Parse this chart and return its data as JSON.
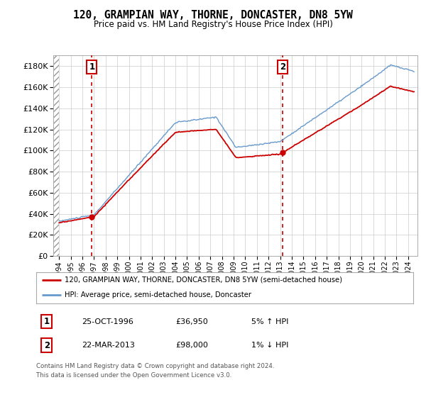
{
  "title": "120, GRAMPIAN WAY, THORNE, DONCASTER, DN8 5YW",
  "subtitle": "Price paid vs. HM Land Registry's House Price Index (HPI)",
  "legend_line1": "120, GRAMPIAN WAY, THORNE, DONCASTER, DN8 5YW (semi-detached house)",
  "legend_line2": "HPI: Average price, semi-detached house, Doncaster",
  "annotation1_label": "1",
  "annotation1_date": "25-OCT-1996",
  "annotation1_price": "£36,950",
  "annotation1_hpi": "5% ↑ HPI",
  "annotation2_label": "2",
  "annotation2_date": "22-MAR-2013",
  "annotation2_price": "£98,000",
  "annotation2_hpi": "1% ↓ HPI",
  "footer": "Contains HM Land Registry data © Crown copyright and database right 2024.\nThis data is licensed under the Open Government Licence v3.0.",
  "red_color": "#cc0000",
  "blue_color": "#6699cc",
  "grid_color": "#cccccc",
  "ylim": [
    0,
    190000
  ],
  "yticks": [
    0,
    20000,
    40000,
    60000,
    80000,
    100000,
    120000,
    140000,
    160000,
    180000
  ],
  "sale1_x": 1996.82,
  "sale1_y": 36950,
  "sale2_x": 2013.22,
  "sale2_y": 98000,
  "xlim_left": 1993.5,
  "xlim_right": 2024.8
}
